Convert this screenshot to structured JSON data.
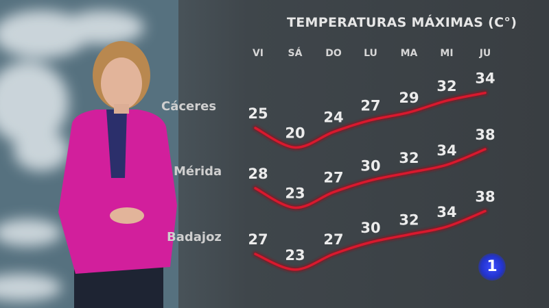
{
  "chart_data": {
    "type": "line",
    "title": "TEMPERATURAS MÁXIMAS (C°)",
    "categories": [
      "VI",
      "SÁ",
      "DO",
      "LU",
      "MA",
      "MI",
      "JU"
    ],
    "series": [
      {
        "name": "Cáceres",
        "values": [
          25,
          20,
          24,
          27,
          29,
          32,
          34
        ]
      },
      {
        "name": "Mérida",
        "values": [
          28,
          23,
          27,
          30,
          32,
          34,
          38
        ]
      },
      {
        "name": "Badajoz",
        "values": [
          27,
          23,
          27,
          30,
          32,
          34,
          38
        ]
      }
    ],
    "line_color": "#d8192e",
    "grid": false,
    "legend": "none"
  },
  "channel_logo": "1"
}
